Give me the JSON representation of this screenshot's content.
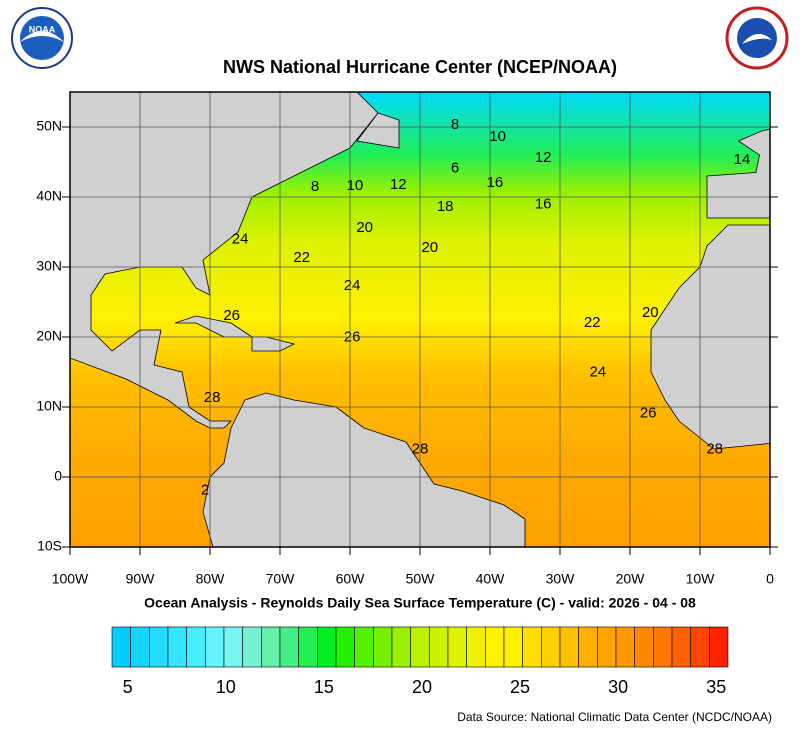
{
  "header": {
    "title": "NWS National Hurricane Center (NCEP/NOAA)",
    "noaa_logo_text": "NOAA"
  },
  "map": {
    "lonlim": [
      -100,
      0
    ],
    "latlim": [
      -10,
      55
    ],
    "xticks": [
      {
        "value": -100,
        "label": "100W"
      },
      {
        "value": -90,
        "label": "90W"
      },
      {
        "value": -80,
        "label": "80W"
      },
      {
        "value": -70,
        "label": "70W"
      },
      {
        "value": -60,
        "label": "60W"
      },
      {
        "value": -50,
        "label": "50W"
      },
      {
        "value": -40,
        "label": "40W"
      },
      {
        "value": -30,
        "label": "30W"
      },
      {
        "value": -20,
        "label": "20W"
      },
      {
        "value": -10,
        "label": "10W"
      },
      0
    ],
    "yticks": [
      {
        "value": 50,
        "label": "50N"
      },
      {
        "value": 40,
        "label": "40N"
      },
      {
        "value": 30,
        "label": "30N"
      },
      {
        "value": 20,
        "label": "20N"
      },
      {
        "value": 10,
        "label": "10N"
      },
      0,
      {
        "value": -10,
        "label": "10S"
      }
    ],
    "contour_labels": [
      {
        "label": "8",
        "lon": -45,
        "lat": 50.3
      },
      {
        "label": "10",
        "lon": -38.9,
        "lat": 48.6
      },
      {
        "label": "12",
        "lon": -32.4,
        "lat": 45.6
      },
      {
        "label": "14",
        "lon": -4,
        "lat": 45.3
      },
      {
        "label": "6",
        "lon": -45,
        "lat": 44.1
      },
      {
        "label": "16",
        "lon": -39.3,
        "lat": 42
      },
      {
        "label": "8",
        "lon": -65,
        "lat": 41.4
      },
      {
        "label": "10",
        "lon": -59.3,
        "lat": 41.6
      },
      {
        "label": "12",
        "lon": -53.1,
        "lat": 41.7
      },
      {
        "label": "18",
        "lon": -46.4,
        "lat": 38.6
      },
      {
        "label": "16",
        "lon": -32.4,
        "lat": 38.9
      },
      {
        "label": "20",
        "lon": -57.9,
        "lat": 35.6
      },
      {
        "label": "20",
        "lon": -48.6,
        "lat": 32.7
      },
      {
        "label": "24",
        "lon": -75.7,
        "lat": 33.9
      },
      {
        "label": "22",
        "lon": -66.9,
        "lat": 31.3
      },
      {
        "label": "24",
        "lon": -59.7,
        "lat": 27.3
      },
      {
        "label": "26",
        "lon": -76.9,
        "lat": 23
      },
      {
        "label": "26",
        "lon": -59.7,
        "lat": 19.9
      },
      {
        "label": "22",
        "lon": -25.4,
        "lat": 22
      },
      {
        "label": "20",
        "lon": -17.1,
        "lat": 23.4
      },
      {
        "label": "24",
        "lon": -24.6,
        "lat": 14.9
      },
      {
        "label": "28",
        "lon": -79.7,
        "lat": 11.3
      },
      {
        "label": "26",
        "lon": -17.4,
        "lat": 9.1
      },
      {
        "label": "28",
        "lon": -50,
        "lat": 3.9
      },
      {
        "label": "28",
        "lon": -7.9,
        "lat": 3.9
      },
      {
        "label": "2",
        "lon": -80.7,
        "lat": -1.9
      }
    ]
  },
  "subtitle": "Ocean Analysis - Reynolds Daily Sea Surface Temperature (C) - valid: 2026 - 04 - 08",
  "colorbar": {
    "clim": [
      4.2,
      35.6
    ],
    "ticks": [
      5,
      10,
      15,
      20,
      25,
      30,
      35
    ],
    "colors": [
      "#00ccff",
      "#11d4ff",
      "#22ddff",
      "#33e6ff",
      "#44eeff",
      "#66f2ff",
      "#77f5f0",
      "#77f0d0",
      "#66eeaa",
      "#44ee88",
      "#22ee55",
      "#00ee22",
      "#22f000",
      "#55f000",
      "#77f000",
      "#99f000",
      "#bbf000",
      "#ccf200",
      "#ddf200",
      "#eef200",
      "#fff200",
      "#fff000",
      "#ffe000",
      "#ffd000",
      "#ffc000",
      "#ffb000",
      "#ffa500",
      "#ff9900",
      "#ff8800",
      "#ff7700",
      "#ff6000",
      "#ff4400",
      "#ff2200"
    ]
  },
  "footer": {
    "source": "Data Source: National Climatic Data Center (NCDC/NOAA)"
  }
}
